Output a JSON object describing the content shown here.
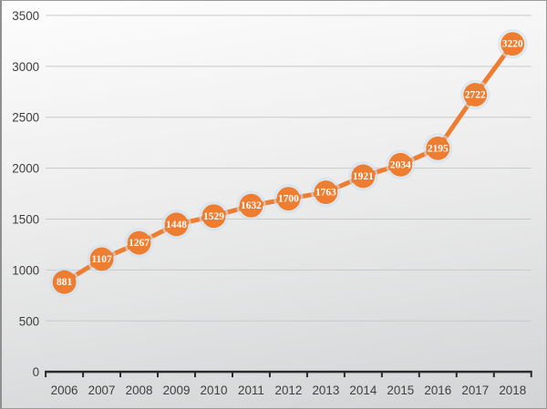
{
  "chart_data": {
    "type": "line",
    "title": "",
    "xlabel": "",
    "ylabel": "",
    "categories": [
      "2006",
      "2007",
      "2008",
      "2009",
      "2010",
      "2011",
      "2012",
      "2013",
      "2014",
      "2015",
      "2016",
      "2017",
      "2018"
    ],
    "series": [
      {
        "values": [
          881,
          1107,
          1267,
          1448,
          1529,
          1632,
          1700,
          1763,
          1921,
          2034,
          2195,
          2722,
          3220
        ]
      }
    ],
    "ylim": [
      0,
      3500
    ],
    "yticks": [
      0,
      500,
      1000,
      1500,
      2000,
      2500,
      3000,
      3500
    ],
    "grid": true,
    "legend": "none",
    "data_labels": "center-on-marker",
    "marker": "circle"
  },
  "colors": {
    "line": "#ED7D31",
    "marker_fill": "#ED7D31",
    "marker_glow": "#CFE0EC",
    "data_label_text": "#FFFFFF",
    "axis_text": "#3F3F3F",
    "gridline": "#C7C9CA",
    "axis_line": "#2B2B2B",
    "background_top": "#FDFDFD",
    "background_mid": "#EDEDED",
    "background_bottom": "#D2D4D5"
  }
}
